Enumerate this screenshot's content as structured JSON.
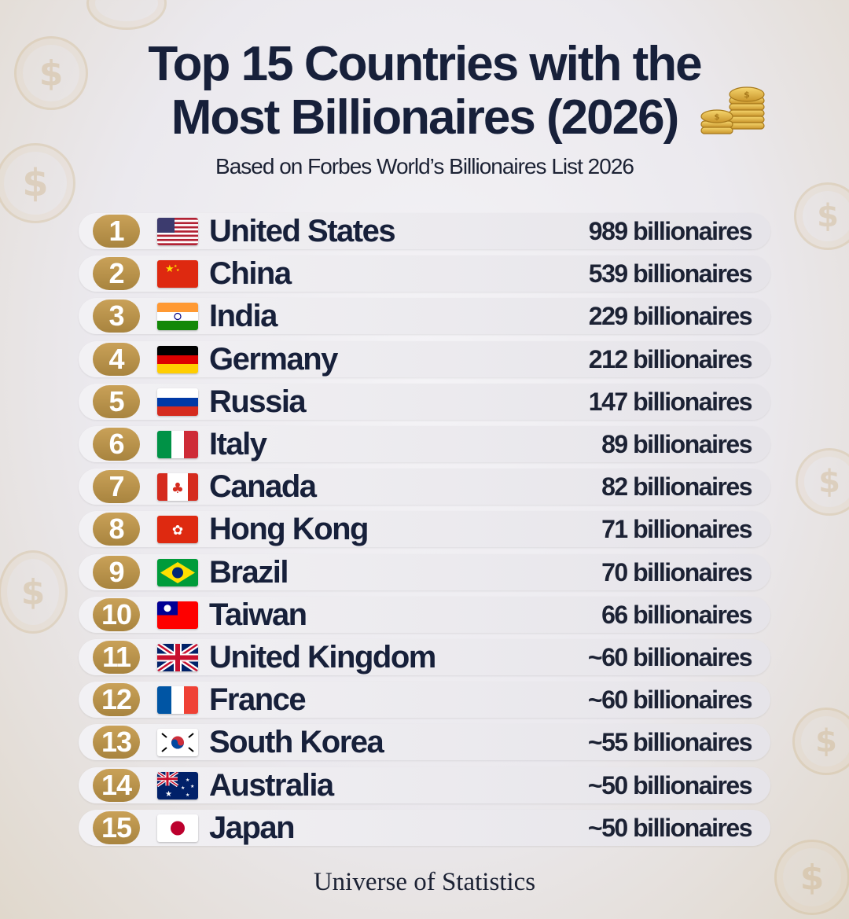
{
  "title_line1": "Top 15 Countries with the",
  "title_line2": "Most Billionaires (2026)",
  "subtitle": "Based on Forbes World’s Billionaires List 2026",
  "footer": "Universe of Statistics",
  "colors": {
    "rank_gold": "#b8924a",
    "text_dark": "#17203a"
  },
  "chart_data": {
    "type": "table",
    "title": "Top 15 Countries with the Most Billionaires (2026)",
    "subtitle": "Based on Forbes World’s Billionaires List 2026",
    "rows": [
      {
        "rank": "1",
        "country": "United States",
        "flag": "us",
        "value_text": "989 billionaires",
        "value": 989
      },
      {
        "rank": "2",
        "country": "China",
        "flag": "cn",
        "value_text": "539 billionaires",
        "value": 539
      },
      {
        "rank": "3",
        "country": "India",
        "flag": "in",
        "value_text": "229 billionaires",
        "value": 229
      },
      {
        "rank": "4",
        "country": "Germany",
        "flag": "de",
        "value_text": "212 billionaires",
        "value": 212
      },
      {
        "rank": "5",
        "country": "Russia",
        "flag": "ru",
        "value_text": "147 billionaires",
        "value": 147
      },
      {
        "rank": "6",
        "country": "Italy",
        "flag": "it",
        "value_text": "89 billionaires",
        "value": 89
      },
      {
        "rank": "7",
        "country": "Canada",
        "flag": "ca",
        "value_text": "82 billionaires",
        "value": 82
      },
      {
        "rank": "8",
        "country": "Hong Kong",
        "flag": "hk",
        "value_text": "71 billionaires",
        "value": 71
      },
      {
        "rank": "9",
        "country": "Brazil",
        "flag": "br",
        "value_text": "70 billionaires",
        "value": 70
      },
      {
        "rank": "10",
        "country": "Taiwan",
        "flag": "tw",
        "value_text": "66 billionaires",
        "value": 66
      },
      {
        "rank": "11",
        "country": "United Kingdom",
        "flag": "gb",
        "value_text": "~60 billionaires",
        "value": 60
      },
      {
        "rank": "12",
        "country": "France",
        "flag": "fr",
        "value_text": "~60 billionaires",
        "value": 60
      },
      {
        "rank": "13",
        "country": "South Korea",
        "flag": "kr",
        "value_text": "~55 billionaires",
        "value": 55
      },
      {
        "rank": "14",
        "country": "Australia",
        "flag": "au",
        "value_text": "~50 billionaires",
        "value": 50
      },
      {
        "rank": "15",
        "country": "Japan",
        "flag": "jp",
        "value_text": "~50 billionaires",
        "value": 50
      }
    ]
  }
}
